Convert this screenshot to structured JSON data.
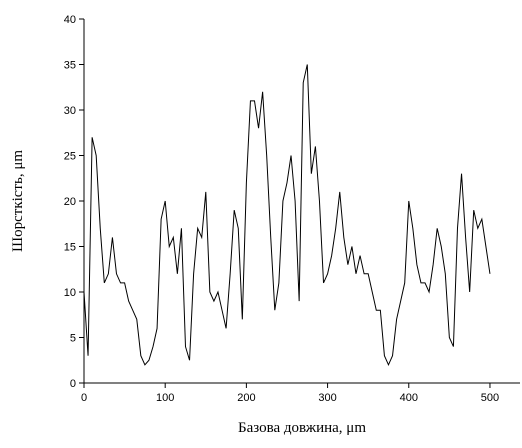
{
  "chart_data": {
    "type": "line",
    "x_label": "Базова довжина, μm",
    "y_label": "Шорсткість, μm",
    "x": [
      0,
      5,
      10,
      15,
      20,
      25,
      30,
      35,
      40,
      45,
      50,
      55,
      60,
      65,
      70,
      75,
      80,
      85,
      90,
      95,
      100,
      105,
      110,
      115,
      120,
      125,
      130,
      135,
      140,
      145,
      150,
      155,
      160,
      165,
      170,
      175,
      180,
      185,
      190,
      195,
      200,
      205,
      210,
      215,
      220,
      225,
      230,
      235,
      240,
      245,
      250,
      255,
      260,
      265,
      270,
      275,
      280,
      285,
      290,
      295,
      300,
      305,
      310,
      315,
      320,
      325,
      330,
      335,
      340,
      345,
      350,
      355,
      360,
      365,
      370,
      375,
      380,
      385,
      390,
      395,
      400,
      405,
      410,
      415,
      420,
      425,
      430,
      435,
      440,
      445,
      450,
      455,
      460,
      465,
      470,
      475,
      480,
      485,
      490,
      495,
      500
    ],
    "series": [
      {
        "name": "roughness",
        "color": "#000000",
        "values": [
          10,
          3,
          27,
          25,
          17,
          11,
          12,
          16,
          12,
          11,
          11,
          9,
          8,
          7,
          3,
          2,
          2.5,
          4,
          6,
          18,
          20,
          15,
          16,
          12,
          17,
          4,
          2.5,
          12,
          17,
          16,
          21,
          10,
          9,
          10,
          8,
          6,
          12,
          19,
          17,
          7,
          22,
          31,
          31,
          28,
          32,
          25,
          16,
          8,
          11,
          20,
          22,
          25,
          20,
          9,
          33,
          35,
          23,
          26,
          20,
          11,
          12,
          14,
          17,
          21,
          16,
          13,
          15,
          12,
          14,
          12,
          12,
          10,
          8,
          8,
          3,
          2,
          3,
          7,
          9,
          11,
          20,
          17,
          13,
          11,
          11,
          10,
          13,
          17,
          15,
          12,
          5,
          4,
          17,
          23,
          16,
          10,
          19,
          17,
          18,
          15,
          12
        ]
      }
    ],
    "xlim": [
      0,
      537
    ],
    "ylim": [
      0,
      40
    ],
    "xticks": [
      0,
      100,
      200,
      300,
      400,
      500
    ],
    "yticks": [
      0,
      5,
      10,
      15,
      20,
      25,
      30,
      35,
      40
    ]
  }
}
